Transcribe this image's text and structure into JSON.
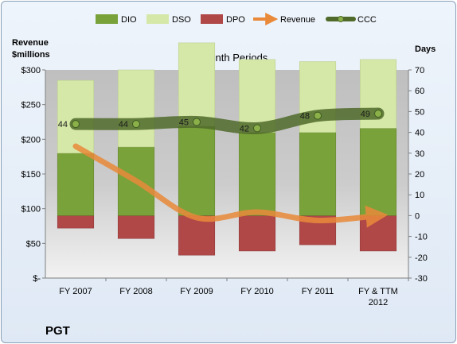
{
  "company": "PGT",
  "colors": {
    "dio": "#7aa23a",
    "dso": "#d6e8a8",
    "dpo": "#b04848",
    "revenue": "#e98a3a",
    "ccc": "#4f6a2a"
  },
  "chart_data": {
    "type": "bar",
    "title": "12-Month Periods",
    "y_left_label_line1": "Revenue",
    "y_left_label_line2": "$millions",
    "y_right_label": "Days",
    "categories": [
      "FY 2007",
      "FY 2008",
      "FY 2009",
      "FY 2010",
      "FY 2011",
      "FY & TTM|2012"
    ],
    "ylim_left": [
      0,
      300
    ],
    "ylim_right": [
      -30,
      70
    ],
    "left_ticks": [
      "$300",
      "$250",
      "$200",
      "$150",
      "$100",
      "$50",
      "$-"
    ],
    "right_ticks": [
      "70",
      "60",
      "50",
      "40",
      "30",
      "20",
      "10",
      "0",
      "-10",
      "-20",
      "-30"
    ],
    "legend": [
      "DIO",
      "DSO",
      "DPO",
      "Revenue",
      "CCC"
    ],
    "series": [
      {
        "name": "DIO",
        "axis": "days",
        "values": [
          30,
          33,
          43,
          40,
          40,
          42
        ]
      },
      {
        "name": "DSO",
        "axis": "days",
        "values": [
          35,
          37,
          40,
          35,
          34,
          33
        ]
      },
      {
        "name": "DPO",
        "axis": "days",
        "values": [
          -6,
          -11,
          -19,
          -17,
          -14,
          -17
        ]
      },
      {
        "name": "Revenue",
        "axis": "revenue",
        "values": [
          190,
          140,
          87,
          95,
          83,
          90
        ]
      },
      {
        "name": "CCC",
        "axis": "days",
        "values": [
          44,
          44,
          45,
          42,
          48,
          49
        ]
      }
    ],
    "ccc_labels": [
      "44",
      "44",
      "45",
      "42",
      "48",
      "49"
    ],
    "grid": false,
    "legend_position": "top"
  }
}
